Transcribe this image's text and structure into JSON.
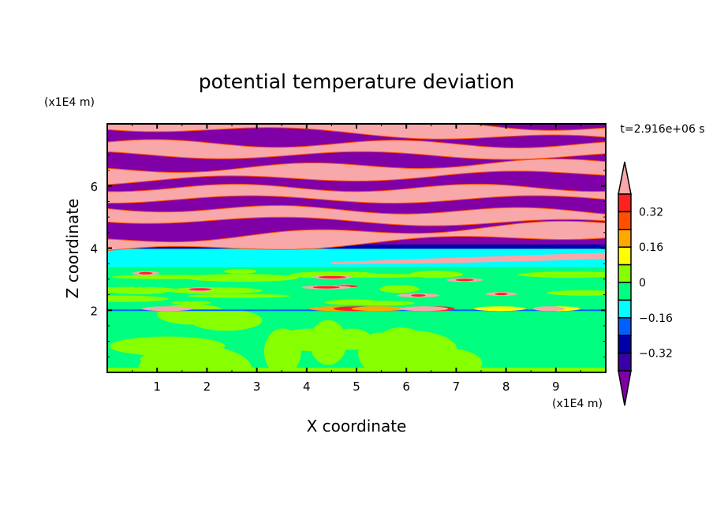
{
  "chart_data": {
    "type": "heatmap",
    "title": "potential temperature deviation",
    "xlabel": "X coordinate",
    "ylabel": "Z coordinate",
    "x_unit_label": "(x1E4 m)",
    "y_unit_label": "(x1E4 m)",
    "time_label": "t=2.916e+06 s",
    "xlim": [
      0,
      10
    ],
    "ylim": [
      0,
      8
    ],
    "xticks": [
      1,
      2,
      3,
      4,
      5,
      6,
      7,
      8,
      9
    ],
    "xtick_labels": [
      "1",
      "2",
      "3",
      "4",
      "5",
      "6",
      "7",
      "8",
      "9"
    ],
    "yticks": [
      2,
      4,
      6
    ],
    "ytick_labels": [
      "2",
      "4",
      "6"
    ],
    "colorbar": {
      "levels": [
        0.4,
        0.32,
        0.24,
        0.16,
        0.08,
        0,
        -0.08,
        -0.16,
        -0.24,
        -0.32,
        -0.4
      ],
      "labels": [
        "0.32",
        "0.16",
        "0",
        "-0.16",
        "-0.32"
      ],
      "label_values": [
        0.32,
        0.16,
        0,
        -0.16,
        -0.32
      ],
      "over_color": "#f8a8a8",
      "under_color": "#8000a8",
      "colors": [
        "#ff2020",
        "#ff5000",
        "#ffa800",
        "#ffff00",
        "#88ff00",
        "#00ff80",
        "#00ffff",
        "#0060ff",
        "#0000a8",
        "#3800a8"
      ]
    },
    "regions": {
      "upper_band_z": [
        4.1,
        8
      ],
      "cyan_layer_z": [
        3.4,
        4.0
      ],
      "lower_layer_z": [
        0,
        3.4
      ],
      "secondary_interface_z": 2.0
    }
  }
}
